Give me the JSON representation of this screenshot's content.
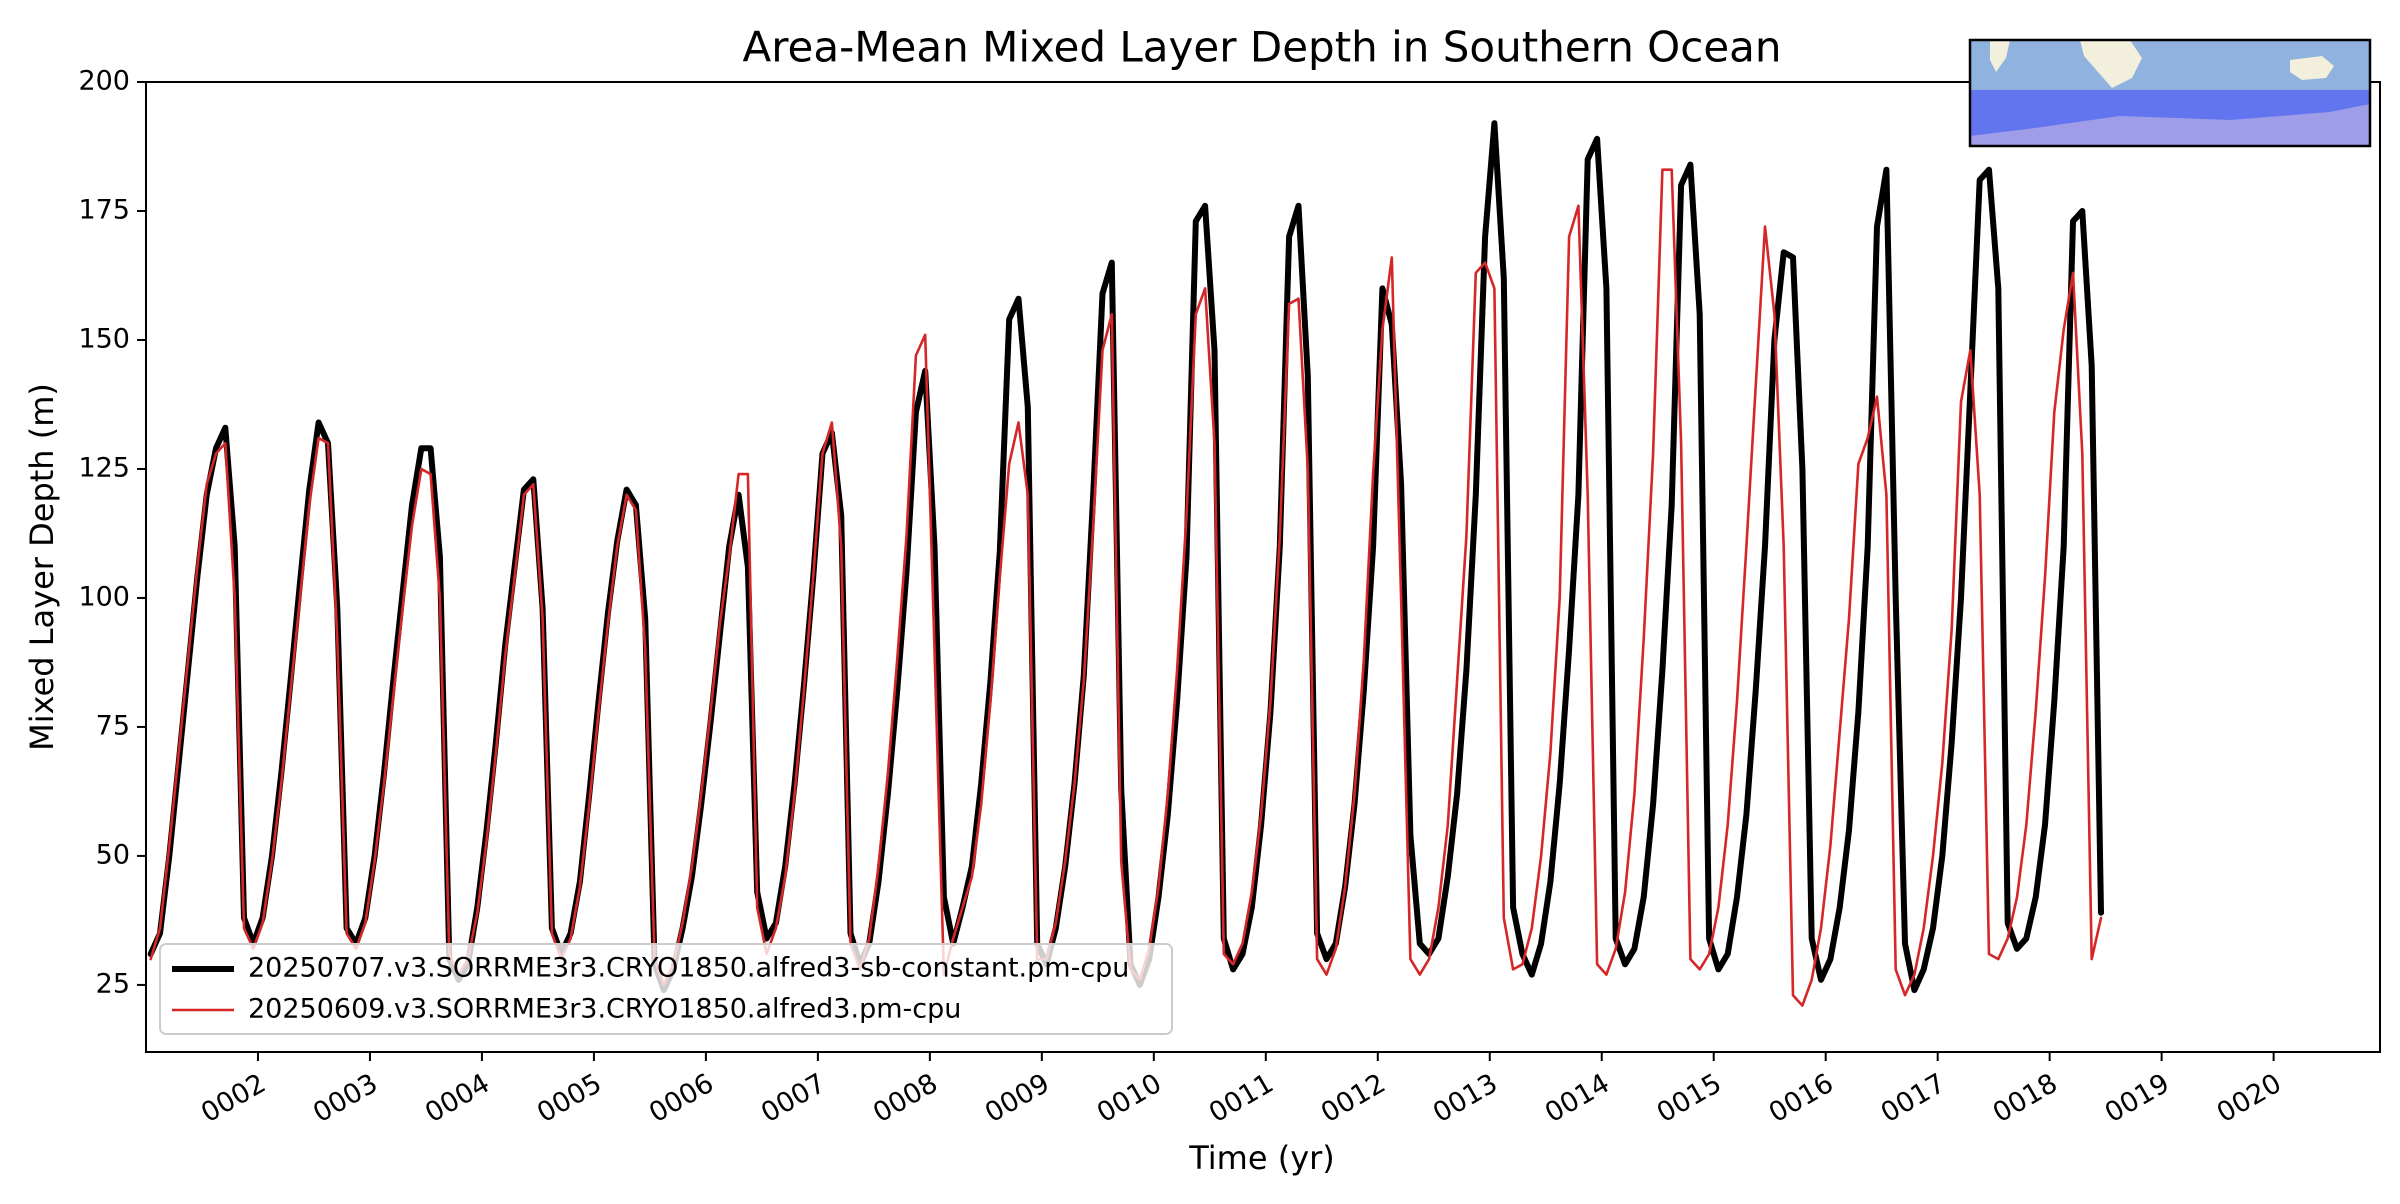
{
  "chart_data": {
    "type": "line",
    "title": "Area-Mean Mixed Layer Depth in Southern Ocean",
    "xlabel": "Time (yr)",
    "ylabel": "Mixed Layer Depth (m)",
    "xlim": [
      1.0,
      20.95
    ],
    "ylim": [
      12,
      200
    ],
    "x_unit": "years (monthly samples, mid-month)",
    "yticks": [
      25,
      50,
      75,
      100,
      125,
      150,
      175,
      200
    ],
    "xticks": [
      {
        "value": 2,
        "label": "0002"
      },
      {
        "value": 3,
        "label": "0003"
      },
      {
        "value": 4,
        "label": "0004"
      },
      {
        "value": 5,
        "label": "0005"
      },
      {
        "value": 6,
        "label": "0006"
      },
      {
        "value": 7,
        "label": "0007"
      },
      {
        "value": 8,
        "label": "0008"
      },
      {
        "value": 9,
        "label": "0009"
      },
      {
        "value": 10,
        "label": "0010"
      },
      {
        "value": 11,
        "label": "0011"
      },
      {
        "value": 12,
        "label": "0012"
      },
      {
        "value": 13,
        "label": "0013"
      },
      {
        "value": 14,
        "label": "0014"
      },
      {
        "value": 15,
        "label": "0015"
      },
      {
        "value": 16,
        "label": "0016"
      },
      {
        "value": 17,
        "label": "0017"
      },
      {
        "value": 18,
        "label": "0018"
      },
      {
        "value": 19,
        "label": "0019"
      },
      {
        "value": 20,
        "label": "0020"
      }
    ],
    "grid": false,
    "legend_position": "lower-left",
    "x_start_year": 1,
    "months_per_year": 12,
    "series": [
      {
        "name": "20250707.v3.SORRME3r3.CRYO1850.alfred3-sb-constant.pm-cpu",
        "color": "#000000",
        "style": "thick",
        "values": [
          31,
          35,
          50,
          68,
          86,
          104,
          120,
          129,
          133,
          110,
          38,
          33,
          38,
          50,
          66,
          84,
          103,
          121,
          134,
          130,
          98,
          36,
          33,
          38,
          50,
          66,
          84,
          101,
          118,
          129,
          129,
          108,
          30,
          26,
          29,
          40,
          55,
          72,
          91,
          106,
          121,
          123,
          98,
          36,
          31,
          35,
          45,
          62,
          80,
          97,
          111,
          121,
          118,
          96,
          29,
          24,
          28,
          36,
          46,
          60,
          76,
          93,
          110,
          120,
          106,
          43,
          34,
          37,
          48,
          64,
          83,
          104,
          128,
          132,
          116,
          35,
          29,
          33,
          45,
          62,
          82,
          105,
          136,
          144,
          110,
          42,
          33,
          40,
          48,
          64,
          84,
          109,
          154,
          158,
          137,
          33,
          29,
          36,
          48,
          64,
          85,
          120,
          159,
          165,
          63,
          29,
          25,
          30,
          42,
          58,
          80,
          108,
          173,
          176,
          148,
          34,
          28,
          31,
          40,
          56,
          78,
          110,
          170,
          176,
          143,
          35,
          30,
          33,
          44,
          60,
          82,
          110,
          160,
          153,
          122,
          54,
          33,
          31,
          34,
          46,
          62,
          86,
          120,
          170,
          192,
          162,
          40,
          31,
          27,
          33,
          45,
          64,
          90,
          120,
          185,
          189,
          160,
          34,
          29,
          32,
          42,
          60,
          86,
          118,
          180,
          184,
          155,
          34,
          28,
          31,
          42,
          58,
          82,
          110,
          150,
          167,
          166,
          125,
          34,
          26,
          30,
          40,
          55,
          78,
          110,
          172,
          183,
          100,
          33,
          24,
          28,
          36,
          50,
          72,
          100,
          140,
          181,
          183,
          160,
          37,
          32,
          34,
          42,
          56,
          80,
          110,
          173,
          175,
          145,
          39
        ]
      },
      {
        "name": "20250609.v3.SORRME3r3.CRYO1850.alfred3.pm-cpu",
        "color": "#d62728",
        "style": "thin",
        "values": [
          30,
          36,
          52,
          70,
          88,
          106,
          122,
          128,
          130,
          100,
          36,
          32,
          37,
          49,
          64,
          82,
          100,
          118,
          131,
          130,
          92,
          35,
          32,
          37,
          49,
          64,
          81,
          98,
          114,
          125,
          124,
          100,
          31,
          27,
          30,
          39,
          53,
          70,
          89,
          104,
          120,
          122,
          96,
          35,
          30,
          34,
          44,
          60,
          78,
          95,
          110,
          120,
          117,
          90,
          30,
          25,
          29,
          37,
          48,
          62,
          78,
          95,
          108,
          124,
          124,
          40,
          31,
          36,
          46,
          62,
          82,
          104,
          128,
          134,
          110,
          33,
          28,
          34,
          48,
          66,
          88,
          112,
          147,
          151,
          90,
          27,
          34,
          40,
          46,
          60,
          80,
          104,
          126,
          134,
          120,
          30,
          30,
          37,
          49,
          64,
          84,
          114,
          148,
          155,
          49,
          28,
          26,
          32,
          44,
          62,
          86,
          116,
          155,
          160,
          130,
          31,
          29,
          33,
          43,
          58,
          80,
          112,
          157,
          158,
          125,
          30,
          27,
          32,
          44,
          62,
          88,
          124,
          152,
          166,
          100,
          30,
          27,
          30,
          40,
          56,
          84,
          112,
          163,
          165,
          160,
          38,
          28,
          29,
          36,
          50,
          70,
          100,
          170,
          176,
          120,
          29,
          27,
          32,
          43,
          62,
          92,
          128,
          183,
          183,
          130,
          30,
          28,
          31,
          40,
          56,
          80,
          110,
          141,
          172,
          155,
          110,
          23,
          21,
          26,
          36,
          52,
          74,
          96,
          126,
          131,
          139,
          120,
          28,
          23,
          27,
          36,
          50,
          68,
          94,
          138,
          148,
          120,
          31,
          30,
          34,
          42,
          56,
          78,
          104,
          136,
          152,
          163,
          128,
          30,
          38
        ]
      }
    ]
  },
  "inset_map": {
    "ocean_color": "#8fb2df",
    "highlight_color": "#5e6ef0",
    "land_color": "#f2efdc"
  }
}
